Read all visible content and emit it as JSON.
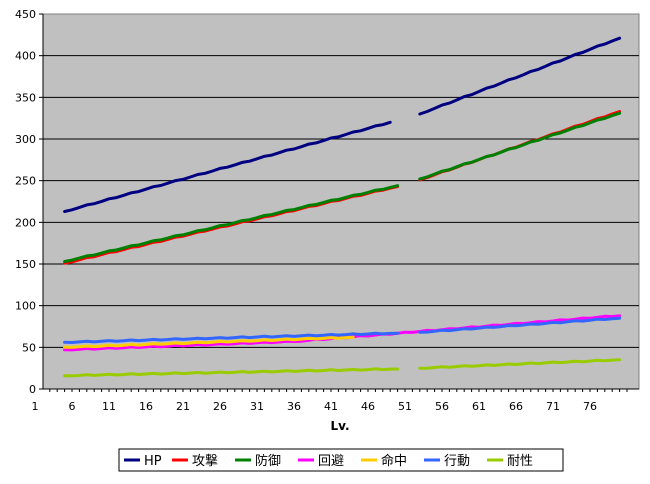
{
  "chart_data": {
    "type": "line",
    "xlabel": "Lv.",
    "ylabel": "",
    "x_tick_labels": [
      "1",
      "6",
      "11",
      "16",
      "21",
      "26",
      "31",
      "36",
      "41",
      "46",
      "51",
      "56",
      "61",
      "66",
      "71",
      "76"
    ],
    "ylim": [
      0,
      450
    ],
    "y_tick_labels": [
      "0",
      "50",
      "100",
      "150",
      "200",
      "250",
      "300",
      "350",
      "400",
      "450"
    ],
    "xlim": [
      1,
      81
    ],
    "plot_background": "#c0c0c0",
    "grid": "horizontal",
    "legend_position": "bottom",
    "gap_between_levels": [
      50,
      53
    ],
    "series": [
      {
        "name": "HP",
        "color": "#000080",
        "start": [
          5,
          213
        ],
        "end": [
          80,
          421
        ],
        "before_gap": [
          49,
          320
        ],
        "after_gap": [
          53,
          330
        ]
      },
      {
        "name": "攻撃",
        "color": "#ff0000",
        "start": [
          5,
          151
        ],
        "end": [
          80,
          333
        ],
        "before_gap": [
          50,
          243
        ],
        "after_gap": [
          53,
          251
        ]
      },
      {
        "name": "防御",
        "color": "#008000",
        "start": [
          5,
          153
        ],
        "end": [
          80,
          331
        ],
        "before_gap": [
          50,
          244
        ],
        "after_gap": [
          53,
          252
        ]
      },
      {
        "name": "回避",
        "color": "#ff00ff",
        "start": [
          5,
          47
        ],
        "end": [
          80,
          88
        ],
        "before_gap": [
          36,
          57
        ],
        "after_gap": null
      },
      {
        "name": "命中",
        "color": "#ffcc00",
        "start": [
          5,
          50
        ],
        "end": [
          44,
          62
        ],
        "before_gap": null,
        "after_gap": null
      },
      {
        "name": "行動",
        "color": "#3366ff",
        "start": [
          5,
          56
        ],
        "end": [
          80,
          85
        ],
        "before_gap": [
          50,
          67
        ],
        "after_gap": [
          53,
          68
        ]
      },
      {
        "name": "耐性",
        "color": "#99cc00",
        "start": [
          5,
          16
        ],
        "end": [
          80,
          35
        ],
        "before_gap": [
          50,
          24
        ],
        "after_gap": [
          53,
          25
        ]
      }
    ]
  }
}
